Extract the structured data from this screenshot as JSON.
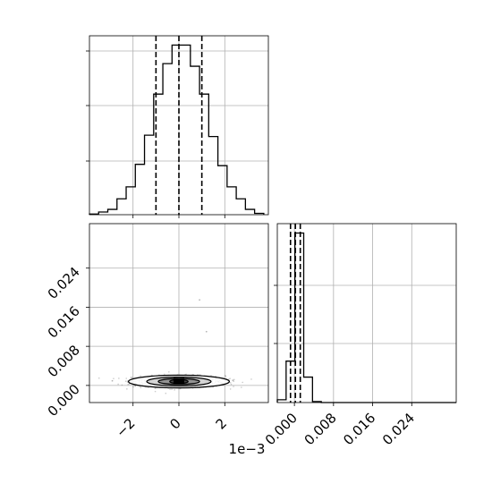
{
  "chart_data": [
    {
      "type": "histogram",
      "panel": "x1 marginal",
      "x_range": [
        -0.0039,
        0.0039
      ],
      "x_offset_label": "1e−3",
      "quantiles": [
        -0.001,
        0.0,
        0.001
      ],
      "bin_edges": [
        -0.0039,
        -0.0035,
        -0.0031,
        -0.0027,
        -0.0023,
        -0.0019,
        -0.0015,
        -0.0011,
        -0.0007,
        -0.0003,
        0.0001,
        0.0005,
        0.0009,
        0.0013,
        0.0017,
        0.0021,
        0.0025,
        0.0029,
        0.0033,
        0.0037
      ],
      "counts": [
        0.5,
        2,
        4,
        12,
        21,
        38,
        60,
        91,
        114,
        128,
        128,
        112,
        91,
        59,
        37,
        21,
        12,
        4,
        1
      ],
      "y_max": 135,
      "grid": true
    },
    {
      "type": "heatmap",
      "panel": "x1 vs x2 2D histogram with density contours",
      "x_range": [
        -0.0039,
        0.0039
      ],
      "y_range": [
        -0.0035,
        0.0331
      ],
      "x_ticks": [
        -2,
        0,
        2
      ],
      "x_offset_label": "1e−3",
      "y_ticks": [
        "0.000",
        "0.008",
        "0.016",
        "0.024"
      ],
      "y_tick_values": [
        0.0,
        0.008,
        0.016,
        0.024
      ],
      "center": [
        0.0,
        0.0008
      ],
      "contour_levels": [
        {
          "half_width_x": 0.0022,
          "half_height_y": 0.0013,
          "fill": "#ffffff"
        },
        {
          "half_width_x": 0.0014,
          "half_height_y": 0.0009,
          "fill": "#cfcfcf"
        },
        {
          "half_width_x": 0.0009,
          "half_height_y": 0.0006,
          "fill": "#8a8a8a"
        },
        {
          "half_width_x": 0.0004,
          "half_height_y": 0.0004,
          "fill": "#3a3a3a"
        }
      ],
      "grid": true
    },
    {
      "type": "histogram",
      "panel": "x2 marginal",
      "x_range": [
        -0.0035,
        0.0331
      ],
      "x_ticks": [
        "0.000",
        "0.008",
        "0.016",
        "0.024"
      ],
      "x_tick_values": [
        0.0,
        0.008,
        0.016,
        0.024
      ],
      "quantiles": [
        -0.0008,
        0.0002,
        0.0012
      ],
      "bin_edges": [
        -0.0017,
        0.0001,
        0.0019,
        0.0037
      ],
      "counts": [
        44,
        180,
        27
      ],
      "extra_tiny_bins": [
        {
          "from": -0.0035,
          "to": -0.0017,
          "count": 3
        },
        {
          "from": 0.0019,
          "to": 0.0037,
          "count": 1
        }
      ],
      "y_max": 190,
      "grid": true
    }
  ]
}
